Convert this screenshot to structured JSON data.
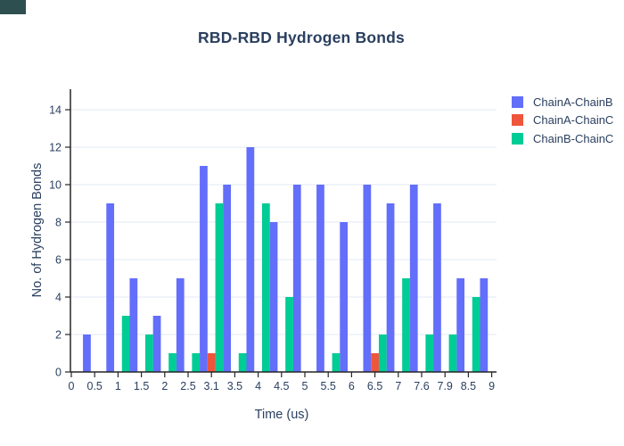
{
  "corner_badge": {
    "color": "#2e4f4f"
  },
  "chart_data": {
    "type": "bar",
    "title": "RBD-RBD Hydrogen Bonds",
    "xlabel": "Time (us)",
    "ylabel": "No. of Hydrogen Bonds",
    "categories": [
      "0",
      "0.5",
      "1",
      "1.5",
      "2",
      "2.5",
      "3.1",
      "3.5",
      "4",
      "4.5",
      "5",
      "5.5",
      "6",
      "6.5",
      "7",
      "7.6",
      "7.9",
      "8.5",
      "9"
    ],
    "yticks": [
      0,
      2,
      4,
      6,
      8,
      10,
      12,
      14
    ],
    "ylim": [
      0,
      15.1
    ],
    "grid": "horizontal-even-values",
    "legend_position": "right-top",
    "barmode": "group",
    "series": [
      {
        "name": "ChainA-ChainB",
        "color": "#636EFA",
        "values": [
          0,
          2,
          9,
          5,
          3,
          5,
          11,
          10,
          12,
          8,
          10,
          10,
          8,
          10,
          9,
          10,
          9,
          5,
          5
        ]
      },
      {
        "name": "ChainA-ChainC",
        "color": "#EF553B",
        "values": [
          0,
          0,
          0,
          0,
          0,
          0,
          1,
          0,
          0,
          0,
          0,
          0,
          0,
          1,
          0,
          0,
          0,
          0,
          0
        ]
      },
      {
        "name": "ChainB-ChainC",
        "color": "#00CC96",
        "values": [
          0,
          0,
          3,
          2,
          1,
          1,
          9,
          1,
          9,
          4,
          0,
          1,
          0,
          2,
          5,
          2,
          2,
          4,
          0
        ]
      }
    ],
    "text_color": "#2a3f5f",
    "grid_color": "#E8EEF8",
    "axis_color": "#262626"
  }
}
